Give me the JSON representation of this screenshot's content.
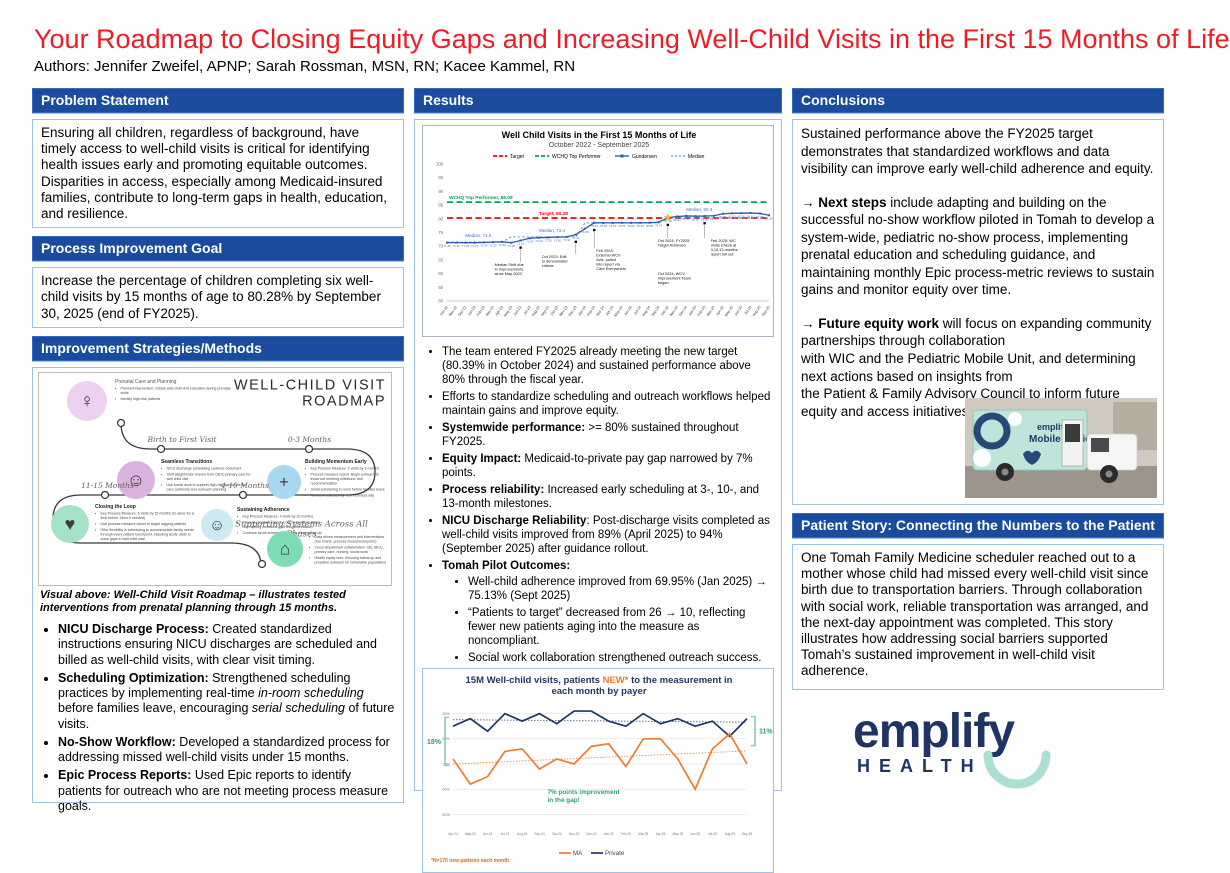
{
  "poster": {
    "title": "Your Roadmap to Closing Equity Gaps and Increasing Well-Child Visits in the First 15 Months of Life",
    "authors": "Authors: Jennifer Zweifel, APNP; Sarah Rossman, MSN, RN; Kacee Kammel, RN"
  },
  "colors": {
    "header_blue": "#1b4b9d",
    "border_blue": "#9dc3e6",
    "title_red": "#ee1c25",
    "target_red": "#ff0000",
    "top_performer_green": "#00a650",
    "gundersen_blue": "#2e5ca8",
    "median_blue": "#5b9bd5",
    "star_yellow": "#ffc000",
    "ma_orange": "#ed7d31",
    "private_navy": "#1f3864",
    "gap_green": "#2f9e77",
    "logo_navy": "#1f3463",
    "logo_mint": "#aadfd2"
  },
  "left": {
    "problem": {
      "header": "Problem Statement",
      "body": "Ensuring all children, regardless of background, have timely access to well-child visits is critical for identifying health issues early and promoting equitable outcomes. Disparities in access, especially among Medicaid-insured families, contribute to long-term gaps in health, education, and resilience."
    },
    "goal": {
      "header": "Process Improvement Goal",
      "body": "Increase the percentage of children completing six well-child visits by 15 months of age to 80.28% by September 30, 2025 (end of FY2025)."
    },
    "methods": {
      "header": "Improvement Strategies/Methods",
      "roadmap": {
        "title_line1": "WELL-CHILD VISIT",
        "title_line2": "ROADMAP",
        "phases": [
          {
            "id": "prenatal",
            "label": "",
            "title": "Prenatal Care and Planning",
            "color": "#ecd2ef",
            "icon": "♀",
            "icon_name": "pregnant-woman-icon",
            "bullets": [
              "Planned intervention: Initiate well-child visit education during prenatal visits",
              "Identify high-risk patients"
            ]
          },
          {
            "id": "seamless",
            "label": "Birth to First Visit",
            "title": "Seamless Transitions",
            "color": "#d9b3dd",
            "icon": "☺",
            "icon_name": "stork-icon",
            "bullets": [
              "NICU discharge scheduling cadence document",
              "Shift weight/color checks from OB to primary care for well child visit",
              "Use social work to support high-risk transitions for care continuity and outreach planning"
            ]
          },
          {
            "id": "building",
            "label": "0-3 Months",
            "title": "Building Momentum Early",
            "color": "#a8d8f0",
            "icon": "+",
            "icon_name": "nurse-icon",
            "bullets": [
              "Key Process Measure: 3 visits by 3 months",
              "Process measure report: Begin outreach to those not meeting milestone visit recommendation",
              "Serial scheduling in room before families leave",
              "No-show outreach by next business day"
            ]
          },
          {
            "id": "closing",
            "label": "11-15 Months",
            "title": "Closing the Loop",
            "color": "#a5e3c8",
            "icon": "♥",
            "icon_name": "heart-in-hand-icon",
            "bullets": [
              "Key Process Measure: 6 visits by 15 months (to allow for a final before 15mo if needed)",
              "Use process measure report to target lagging patients",
              "Offer flexibility in scheduling to accommodate family needs through every patient touchpoint, including acute visits to close gaps in well child care"
            ]
          },
          {
            "id": "sustaining",
            "label": "4-10 Months",
            "title": "Sustaining Adherence",
            "color": "#cde9f2",
            "icon": "☺",
            "icon_name": "caregiver-icon",
            "bullets": [
              "Key Process Measure: 4 visits by 10 months",
              "Process measure report: Cont. outreach to those not meeting milestone visit recommendation",
              "Continue serial scheduling and no-show follow-up"
            ]
          },
          {
            "id": "supporting",
            "label": "Supporting Systems Across All Phases",
            "title": "",
            "color": "#7ddcb3",
            "icon": "⌂",
            "icon_name": "hospital-icon",
            "bullets": [
              "Data driven measurement and interventions (run charts, process measures/reports)",
              "Cross-department collaboration: OB, NICU, primary care, nursing, social work",
              "Health equity lens: ensuring follow-up and proactive outreach for vulnerable populations"
            ]
          }
        ],
        "caption": "Visual above: Well-Child Visit Roadmap – illustrates tested interventions from prenatal planning through 15 months."
      },
      "bullets": [
        [
          {
            "t": "NICU Discharge Process:",
            "b": true
          },
          {
            "t": " Created standardized instructions ensuring NICU discharges are scheduled and billed as well-child visits, with clear visit timing."
          }
        ],
        [
          {
            "t": "Scheduling Optimization:",
            "b": true
          },
          {
            "t": " Strengthened scheduling practices by implementing real-time "
          },
          {
            "t": "in-room scheduling",
            "i": true
          },
          {
            "t": " before families leave, encouraging "
          },
          {
            "t": "serial scheduling",
            "i": true
          },
          {
            "t": " of future visits."
          }
        ],
        [
          {
            "t": "No-Show Workflow:",
            "b": true
          },
          {
            "t": " Developed a standardized process for addressing missed well-child visits under 15 months."
          }
        ],
        [
          {
            "t": "Epic Process Reports:",
            "b": true
          },
          {
            "t": " Used Epic reports to identify patients for outreach who are not meeting process measure goals."
          }
        ]
      ]
    }
  },
  "middle": {
    "header": "Results",
    "bullets": [
      {
        "segs": [
          {
            "t": "The team entered FY2025 already meeting the new target (80.39% in October 2024) and sustained performance above 80% through the fiscal year."
          }
        ]
      },
      {
        "segs": [
          {
            "t": "Efforts to standardize scheduling and outreach workflows helped maintain gains and improve equity."
          }
        ]
      },
      {
        "segs": [
          {
            "t": "Systemwide performance:",
            "b": true
          },
          {
            "t": "  >= 80% sustained throughout FY2025."
          }
        ]
      },
      {
        "segs": [
          {
            "t": "Equity Impact:",
            "b": true
          },
          {
            "t": " Medicaid-to-private pay gap narrowed by 7% points."
          }
        ]
      },
      {
        "segs": [
          {
            "t": "Process reliability:",
            "b": true
          },
          {
            "t": " Increased early scheduling at 3-, 10-, and 13-month milestones."
          }
        ]
      },
      {
        "segs": [
          {
            "t": "NICU Discharge Reliability",
            "b": true
          },
          {
            "t": ": Post-discharge visits completed as well-child visits improved from 89% (April 2025) to 94% (September 2025) after guidance rollout."
          }
        ]
      },
      {
        "segs": [
          {
            "t": "Tomah Pilot Outcomes:",
            "b": true
          }
        ],
        "subs": [
          [
            {
              "t": "Well-child adherence improved from 69.95% (Jan 2025) → 75.13% (Sept 2025)"
            }
          ],
          [
            {
              "t": "“Patients to target” decreased from 26 → 10, reflecting fewer new patients aging into the measure as noncompliant."
            }
          ],
          [
            {
              "t": "Social work collaboration strengthened outreach success."
            }
          ]
        ]
      }
    ]
  },
  "right": {
    "conclusions": {
      "header": "Conclusions",
      "paragraphs": [
        [
          {
            "t": "Sustained performance above the FY2025 target demonstrates that standardized workflows and data visibility can improve early well-child adherence and equity."
          }
        ],
        [
          {
            "t": "→ "
          },
          {
            "t": "Next steps",
            "b": true
          },
          {
            "t": " include adapting and building on the successful no-show workflow piloted in Tomah to develop a system-wide, pediatric no-show process, implementing prenatal education and scheduling guidance, and maintaining monthly Epic process-metric reviews to sustain gains and monitor equity over time."
          }
        ],
        [
          {
            "t": "→ "
          },
          {
            "t": "Future equity work",
            "b": true
          },
          {
            "t": " will focus on expanding community partnerships through collaboration\nwith WIC and the Pediatric Mobile Unit, and determining next actions based on insights from\nthe Patient & Family Advisory Council to inform future equity and access initiatives."
          }
        ]
      ]
    },
    "patient_story": {
      "header": "Patient Story: Connecting the Numbers to the Patient",
      "body": "One Tomah Family Medicine scheduler reached out to a mother whose child had missed every well-child visit since birth due to transportation barriers. Through collaboration with social work, reliable transportation was arranged, and the next-day appointment was completed. This story illustrates how addressing social barriers supported Tomah’s sustained improvement in well-child visit adherence."
    }
  },
  "mobile_clinic": {
    "brand": "emplify",
    "label": "Mobile Clinic"
  },
  "logo": {
    "word": "emplify",
    "health": "HEALTH"
  },
  "chart_data": [
    {
      "type": "line",
      "title": "Well Child Visits in the First 15 Months of Life",
      "subtitle": "October 2022 - September 2025",
      "legend": [
        "Target",
        "WCHQ Top Performer",
        "Gundersen",
        "Median"
      ],
      "ylim": [
        50,
        100
      ],
      "ytick_step": 5,
      "x": [
        "Oct-22",
        "Nov-22",
        "Dec-22",
        "Jan-23",
        "Feb-23",
        "Mar-23",
        "Apr-23",
        "May-23",
        "Jun-23",
        "Jul-23",
        "Aug-23",
        "Sep-23",
        "Oct-23",
        "Nov-23",
        "Dec-23",
        "Jan-24",
        "Feb-24",
        "Mar-24",
        "Apr-24",
        "May-24",
        "Jun-24",
        "Jul-24",
        "Aug-24",
        "Sep-24",
        "Oct-24",
        "Nov-24",
        "Dec-24",
        "Jan-25",
        "Feb-25",
        "Mar-25",
        "Apr-25",
        "May-25",
        "Jun-25",
        "Jul-25",
        "Aug-25",
        "Sep-25"
      ],
      "target": 80.28,
      "top_performer": 86.08,
      "series": [
        {
          "name": "Gundersen",
          "values": [
            71.3,
            71.3,
            71.29,
            71.29,
            71.4,
            71.5,
            71.6,
            71.26,
            72.1,
            72.9,
            73.1,
            73.2,
            73.3,
            73.4,
            74.23,
            76.38,
            78.54,
            78.5,
            78.52,
            78.56,
            78.52,
            78.54,
            78.58,
            78.75,
            80.39,
            80.83,
            81.05,
            80.95,
            81.0,
            81.1,
            81.85,
            82.0,
            82.05,
            82.1,
            81.95,
            81.28
          ]
        },
        {
          "name": "Median",
          "values": [
            71.5,
            71.5,
            71.5,
            71.5,
            71.5,
            71.5,
            71.5,
            73.4,
            73.4,
            73.4,
            73.4,
            73.4,
            73.4,
            73.4,
            73.4,
            78.5,
            78.5,
            78.5,
            78.5,
            78.5,
            78.5,
            78.5,
            78.5,
            78.5,
            80.3,
            80.3,
            80.3,
            80.3,
            80.3,
            80.3,
            80.3,
            80.3,
            80.3,
            80.3,
            80.3,
            80.3
          ]
        }
      ],
      "line_labels": {
        "target": "Target, 80.28",
        "top_performer": "WCHQ Top Performer, 86.08",
        "median": [
          "Median, 71.5",
          "Median, 73.4",
          "Median, 80.3"
        ]
      },
      "annotations": [
        {
          "anchor": 8,
          "text": "Median Shift due to improvements since May 2023"
        },
        {
          "anchor": 14,
          "text": "Oct 2023: Edit to denominator criteria"
        },
        {
          "anchor": 16,
          "text": "Feb 2024: External WCV Avls. pulled into report via Care Everywhere"
        },
        {
          "anchor": 24,
          "text": "Oct 2024: FY2025 Target Achieved",
          "star": true
        },
        {
          "anchor": 24,
          "text": "Oct 2024: WCV Improvement Team began"
        },
        {
          "anchor": 28,
          "text": "Feb 2025: WC Visits Check at 3,10,13 months: report roll out"
        }
      ]
    },
    {
      "type": "line",
      "title_segs": [
        {
          "t": "15M Well-child visits, patients "
        },
        {
          "t": "NEW*",
          "orange": true
        },
        {
          "t": " to the measurement in"
        }
      ],
      "title_line2": "each month by payer",
      "ylim": [
        45,
        95
      ],
      "yticks": [
        50,
        60,
        70,
        80,
        90
      ],
      "x": [
        "Apr-24",
        "May-24",
        "Jun-24",
        "Jul-24",
        "Aug-24",
        "Sep-24",
        "Oct-24",
        "Nov-24",
        "Dec-24",
        "Jan-25",
        "Feb-25",
        "Mar-25",
        "Apr-25",
        "May-25",
        "Jun-25",
        "Jul-25",
        "Aug-25",
        "Sep-25"
      ],
      "series": [
        {
          "name": "MA",
          "values": [
            72,
            62,
            65,
            75,
            76,
            68,
            72,
            70,
            77,
            78,
            69,
            80,
            80,
            72,
            60,
            76,
            82,
            70
          ],
          "trend": [
            70,
            75.2
          ]
        },
        {
          "name": "Private",
          "values": [
            85,
            88,
            83,
            90,
            87,
            90,
            86,
            91,
            91,
            87,
            85,
            90,
            86,
            88,
            85,
            87,
            81,
            88
          ],
          "trend": [
            87.6,
            86.6
          ]
        }
      ],
      "gap_left": "18%",
      "gap_right": "11%",
      "annotation": "7% points improvement in the gap!",
      "legend": [
        "MA",
        "Private"
      ],
      "footnote": "*N=170 new patients each month"
    }
  ]
}
